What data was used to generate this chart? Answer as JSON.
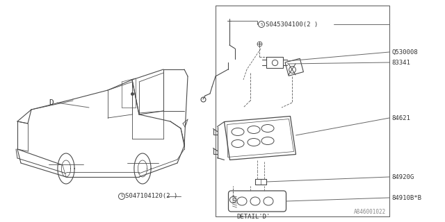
{
  "bg_color": "#ffffff",
  "pc": "#4a4a4a",
  "tc": "#333333",
  "lc": "#666666",
  "figsize": [
    6.4,
    3.2
  ],
  "dpi": 100,
  "labels": {
    "S045304100": "S045304100(2 )",
    "Q530008": "Q530008",
    "83341": "83341",
    "84621": "84621",
    "84920G": "84920G",
    "84910BB": "84910B*B",
    "S047104120": "S047104120(2 )",
    "D": "D",
    "detail_d": "DETAIL'D'",
    "ref": "A846001022"
  }
}
